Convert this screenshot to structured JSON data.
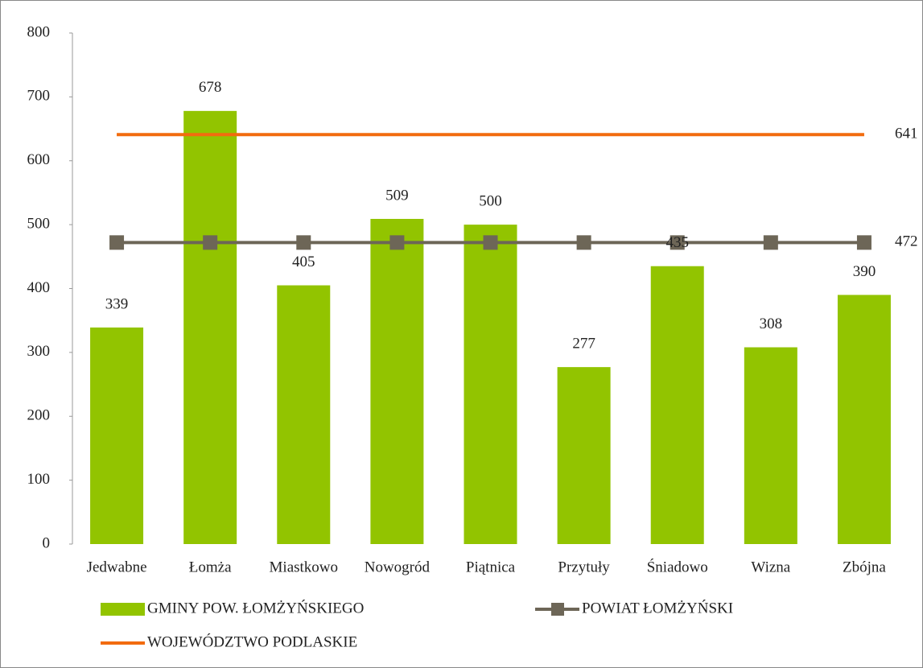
{
  "chart_data": {
    "type": "bar",
    "categories": [
      "Jedwabne",
      "Łomża",
      "Miastkowo",
      "Nowogród",
      "Piątnica",
      "Przytuły",
      "Śniadowo",
      "Wizna",
      "Zbójna"
    ],
    "series": [
      {
        "name": "GMINY POW. ŁOMŻYŃSKIEGO",
        "type": "bar",
        "color": "#92c400",
        "values": [
          339,
          678,
          405,
          509,
          500,
          277,
          435,
          308,
          390
        ]
      },
      {
        "name": "POWIAT ŁOMŻYŃSKI",
        "type": "line",
        "marker": "square",
        "color": "#6d6657",
        "values": [
          472,
          472,
          472,
          472,
          472,
          472,
          472,
          472,
          472
        ]
      },
      {
        "name": "WOJEWÓDZTWO PODLASKIE",
        "type": "line",
        "color": "#f26b0f",
        "values": [
          641,
          641,
          641,
          641,
          641,
          641,
          641,
          641,
          641
        ]
      }
    ],
    "ylim": [
      0,
      800
    ],
    "yticks": [
      0,
      100,
      200,
      300,
      400,
      500,
      600,
      700,
      800
    ],
    "grid": false
  }
}
